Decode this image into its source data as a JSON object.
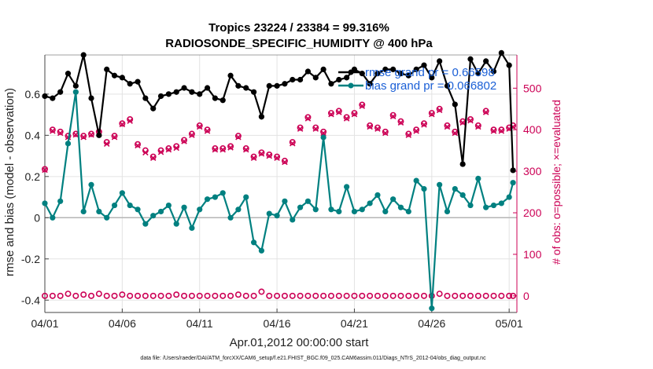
{
  "chart_data": {
    "type": "line",
    "title": "Tropics 23224 / 23384 = 99.316%",
    "subtitle": "RADIOSONDE_SPECIFIC_HUMIDITY @ 400 hPa",
    "xlabel": "Apr.01,2012 00:00:00 start",
    "ylabel": "rmse and bias (model - observation)",
    "y2label": "# of obs: o=possible; ×=evaluated",
    "xlim": [
      0,
      30.5
    ],
    "ylim": [
      -0.46,
      0.79
    ],
    "y2lim": [
      -40,
      580
    ],
    "x_ticks": [
      0,
      5,
      10,
      15,
      20,
      25,
      30
    ],
    "x_tick_labels": [
      "04/01",
      "04/06",
      "04/11",
      "04/16",
      "04/21",
      "04/26",
      "05/01"
    ],
    "y_ticks": [
      -0.4,
      -0.2,
      0,
      0.2,
      0.4,
      0.6
    ],
    "y_tick_labels": [
      "-0.4",
      "-0.2",
      "0",
      "0.2",
      "0.4",
      "0.6"
    ],
    "y2_ticks": [
      0,
      100,
      200,
      300,
      400,
      500
    ],
    "y2_tick_labels": [
      "0",
      "100",
      "200",
      "300",
      "400",
      "500"
    ],
    "legend": [
      {
        "label": "rmse grand pr = 0.66598",
        "color": "#000000"
      },
      {
        "label": "bias grand pr = 0.066802",
        "color": "#008080"
      }
    ],
    "footer": "data file: /Users/raeder/DAI/ATM_forcXX/CAM6_setup/f.e21.FHIST_BGC.f09_025.CAM6assim.011/Diags_NTrS_2012-04/obs_diag_output.nc",
    "series": [
      {
        "name": "rmse",
        "color": "#000000",
        "x": [
          0,
          0.5,
          1,
          1.5,
          2,
          2.5,
          3,
          3.5,
          4,
          4.5,
          5,
          5.5,
          6,
          6.5,
          7,
          7.5,
          8,
          8.5,
          9,
          9.5,
          10,
          10.5,
          11,
          11.5,
          12,
          12.5,
          13,
          13.5,
          14,
          14.5,
          15,
          15.5,
          16,
          16.5,
          17,
          17.5,
          18,
          18.5,
          19,
          19.5,
          20,
          20.5,
          21,
          21.5,
          22,
          22.5,
          23,
          23.5,
          24,
          24.5,
          25,
          25.5,
          26,
          26.5,
          27,
          27.5,
          28,
          28.5,
          29,
          29.5,
          30,
          30.25
        ],
        "values": [
          0.59,
          0.58,
          0.61,
          0.7,
          0.64,
          0.79,
          0.58,
          0.4,
          0.72,
          0.69,
          0.68,
          0.65,
          0.66,
          0.58,
          0.53,
          0.59,
          0.6,
          0.61,
          0.63,
          0.61,
          0.6,
          0.63,
          0.58,
          0.57,
          0.69,
          0.64,
          0.63,
          0.61,
          0.49,
          0.64,
          0.64,
          0.65,
          0.67,
          0.67,
          0.71,
          0.68,
          0.72,
          0.65,
          0.67,
          0.68,
          0.72,
          0.7,
          0.65,
          0.7,
          0.72,
          0.72,
          0.7,
          0.69,
          0.72,
          0.74,
          0.68,
          0.76,
          0.64,
          0.55,
          0.26,
          0.77,
          0.7,
          0.76,
          0.71,
          0.8,
          0.74,
          0.23
        ]
      },
      {
        "name": "bias",
        "color": "#008080",
        "x": [
          0,
          0.5,
          1,
          1.5,
          2,
          2.5,
          3,
          3.5,
          4,
          4.5,
          5,
          5.5,
          6,
          6.5,
          7,
          7.5,
          8,
          8.5,
          9,
          9.5,
          10,
          10.5,
          11,
          11.5,
          12,
          12.5,
          13,
          13.5,
          14,
          14.5,
          15,
          15.5,
          16,
          16.5,
          17,
          17.5,
          18,
          18.5,
          19,
          19.5,
          20,
          20.5,
          21,
          21.5,
          22,
          22.5,
          23,
          23.5,
          24,
          24.5,
          25,
          25.5,
          26,
          26.5,
          27,
          27.5,
          28,
          28.5,
          29,
          29.5,
          30,
          30.25
        ],
        "values": [
          0.07,
          0.0,
          0.08,
          0.36,
          0.61,
          0.03,
          0.16,
          0.03,
          0.0,
          0.06,
          0.12,
          0.06,
          0.04,
          -0.03,
          0.01,
          0.03,
          0.06,
          -0.03,
          0.05,
          -0.05,
          0.04,
          0.09,
          0.1,
          0.12,
          0.0,
          0.04,
          0.1,
          -0.12,
          -0.16,
          0.02,
          0.01,
          0.08,
          -0.01,
          0.05,
          0.08,
          0.04,
          0.39,
          0.04,
          0.03,
          0.15,
          0.03,
          0.04,
          0.07,
          0.11,
          0.03,
          0.09,
          0.05,
          0.03,
          0.18,
          0.14,
          -0.44,
          0.16,
          0.03,
          0.14,
          0.11,
          0.06,
          0.19,
          0.05,
          0.06,
          0.07,
          0.1,
          0.17
        ]
      },
      {
        "name": "obs possible",
        "color": "#cc0055",
        "axis": "right",
        "x": [
          0,
          0.5,
          1,
          1.5,
          2,
          2.5,
          3,
          3.5,
          4,
          4.5,
          5,
          5.5,
          6,
          6.5,
          7,
          7.5,
          8,
          8.5,
          9,
          9.5,
          10,
          10.5,
          11,
          11.5,
          12,
          12.5,
          13,
          13.5,
          14,
          14.5,
          15,
          15.5,
          16,
          16.5,
          17,
          17.5,
          18,
          18.5,
          19,
          19.5,
          20,
          20.5,
          21,
          21.5,
          22,
          22.5,
          23,
          23.5,
          24,
          24.5,
          25,
          25.5,
          26,
          26.5,
          27,
          27.5,
          28,
          28.5,
          29,
          29.5,
          30,
          30.25
        ],
        "values": [
          305,
          400,
          395,
          385,
          390,
          385,
          390,
          395,
          370,
          385,
          415,
          425,
          365,
          350,
          335,
          350,
          355,
          360,
          375,
          390,
          410,
          400,
          355,
          355,
          360,
          385,
          355,
          335,
          345,
          340,
          335,
          325,
          370,
          405,
          430,
          405,
          395,
          440,
          445,
          430,
          440,
          460,
          410,
          405,
          395,
          435,
          420,
          390,
          400,
          415,
          440,
          450,
          410,
          395,
          420,
          425,
          410,
          445,
          400,
          400,
          405,
          410
        ]
      },
      {
        "name": "obs evaluated",
        "color": "#cc0055",
        "axis": "right",
        "marker": "x",
        "x": [
          0,
          0.5,
          1,
          1.5,
          2,
          2.5,
          3,
          3.5,
          4,
          4.5,
          5,
          5.5,
          6,
          6.5,
          7,
          7.5,
          8,
          8.5,
          9,
          9.5,
          10,
          10.5,
          11,
          11.5,
          12,
          12.5,
          13,
          13.5,
          14,
          14.5,
          15,
          15.5,
          16,
          16.5,
          17,
          17.5,
          18,
          18.5,
          19,
          19.5,
          20,
          20.5,
          21,
          21.5,
          22,
          22.5,
          23,
          23.5,
          24,
          24.5,
          25,
          25.5,
          26,
          26.5,
          27,
          27.5,
          28,
          28.5,
          29,
          29.5,
          30,
          30.25
        ],
        "values": [
          303,
          397,
          392,
          382,
          388,
          382,
          388,
          392,
          366,
          382,
          413,
          421,
          362,
          345,
          332,
          346,
          352,
          356,
          372,
          387,
          407,
          397,
          352,
          352,
          357,
          382,
          352,
          332,
          342,
          337,
          332,
          322,
          367,
          402,
          427,
          402,
          392,
          437,
          442,
          427,
          437,
          457,
          407,
          402,
          392,
          432,
          417,
          387,
          397,
          412,
          437,
          447,
          407,
          392,
          417,
          422,
          407,
          442,
          397,
          397,
          402,
          407
        ]
      },
      {
        "name": "obs possible (lower)",
        "color": "#cc0055",
        "axis": "right",
        "x": [
          0,
          0.5,
          1,
          1.5,
          2,
          2.5,
          3,
          3.5,
          4,
          4.5,
          5,
          5.5,
          6,
          6.5,
          7,
          7.5,
          8,
          8.5,
          9,
          9.5,
          10,
          10.5,
          11,
          11.5,
          12,
          12.5,
          13,
          13.5,
          14,
          14.5,
          15,
          15.5,
          16,
          16.5,
          17,
          17.5,
          18,
          18.5,
          19,
          19.5,
          20,
          20.5,
          21,
          21.5,
          22,
          22.5,
          23,
          23.5,
          24,
          24.5,
          25,
          25.5,
          26,
          26.5,
          27,
          27.5,
          28,
          28.5,
          29,
          29.5,
          30,
          30.25
        ],
        "values": [
          0,
          0,
          0,
          5,
          0,
          3,
          0,
          5,
          0,
          0,
          3,
          0,
          0,
          0,
          0,
          0,
          0,
          3,
          0,
          0,
          0,
          0,
          0,
          0,
          0,
          3,
          0,
          0,
          10,
          0,
          0,
          0,
          0,
          0,
          0,
          0,
          0,
          0,
          0,
          0,
          0,
          0,
          0,
          0,
          0,
          0,
          0,
          0,
          0,
          0,
          0,
          5,
          0,
          0,
          0,
          0,
          0,
          0,
          0,
          0,
          0,
          0
        ]
      }
    ]
  }
}
